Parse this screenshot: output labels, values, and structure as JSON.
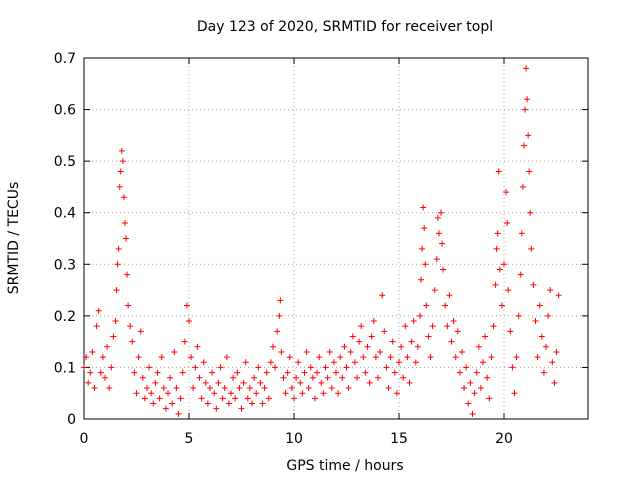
{
  "chart_data": {
    "type": "scatter",
    "title": "Day 123 of 2020, SRMTID for receiver topl",
    "xlabel": "GPS time / hours",
    "ylabel": "SRMTID / TECUs",
    "xlim": [
      0,
      24
    ],
    "ylim": [
      0,
      0.7
    ],
    "xticks": [
      0,
      5,
      10,
      15,
      20
    ],
    "xtick_labels": [
      "0",
      "5",
      "10",
      "15",
      "20"
    ],
    "yticks": [
      0,
      0.1,
      0.2,
      0.3,
      0.4,
      0.5,
      0.6,
      0.7
    ],
    "ytick_labels": [
      "0",
      "0.1",
      "0.2",
      "0.3",
      "0.4",
      "0.5",
      "0.6",
      "0.7"
    ],
    "grid": true,
    "marker": "plus",
    "color": "#ff0000",
    "series": [
      {
        "name": "SRMTID",
        "points": [
          [
            0.0,
            0.1
          ],
          [
            0.1,
            0.12
          ],
          [
            0.2,
            0.07
          ],
          [
            0.3,
            0.09
          ],
          [
            0.4,
            0.13
          ],
          [
            0.5,
            0.06
          ],
          [
            0.6,
            0.18
          ],
          [
            0.7,
            0.21
          ],
          [
            0.8,
            0.09
          ],
          [
            0.9,
            0.12
          ],
          [
            1.0,
            0.08
          ],
          [
            1.1,
            0.14
          ],
          [
            1.2,
            0.06
          ],
          [
            1.3,
            0.1
          ],
          [
            1.4,
            0.16
          ],
          [
            1.5,
            0.19
          ],
          [
            1.55,
            0.25
          ],
          [
            1.6,
            0.3
          ],
          [
            1.65,
            0.33
          ],
          [
            1.7,
            0.45
          ],
          [
            1.75,
            0.48
          ],
          [
            1.8,
            0.52
          ],
          [
            1.85,
            0.5
          ],
          [
            1.9,
            0.43
          ],
          [
            1.95,
            0.38
          ],
          [
            2.0,
            0.35
          ],
          [
            2.05,
            0.28
          ],
          [
            2.1,
            0.22
          ],
          [
            2.2,
            0.18
          ],
          [
            2.3,
            0.15
          ],
          [
            2.4,
            0.09
          ],
          [
            2.5,
            0.05
          ],
          [
            2.6,
            0.12
          ],
          [
            2.7,
            0.17
          ],
          [
            2.8,
            0.08
          ],
          [
            2.9,
            0.04
          ],
          [
            3.0,
            0.06
          ],
          [
            3.1,
            0.1
          ],
          [
            3.2,
            0.05
          ],
          [
            3.3,
            0.03
          ],
          [
            3.4,
            0.07
          ],
          [
            3.5,
            0.09
          ],
          [
            3.6,
            0.04
          ],
          [
            3.7,
            0.12
          ],
          [
            3.8,
            0.06
          ],
          [
            3.9,
            0.02
          ],
          [
            4.0,
            0.05
          ],
          [
            4.1,
            0.08
          ],
          [
            4.2,
            0.03
          ],
          [
            4.3,
            0.13
          ],
          [
            4.4,
            0.06
          ],
          [
            4.5,
            0.01
          ],
          [
            4.6,
            0.04
          ],
          [
            4.7,
            0.09
          ],
          [
            4.8,
            0.15
          ],
          [
            4.9,
            0.22
          ],
          [
            5.0,
            0.19
          ],
          [
            5.1,
            0.12
          ],
          [
            5.2,
            0.06
          ],
          [
            5.3,
            0.1
          ],
          [
            5.4,
            0.14
          ],
          [
            5.5,
            0.08
          ],
          [
            5.6,
            0.04
          ],
          [
            5.7,
            0.11
          ],
          [
            5.8,
            0.07
          ],
          [
            5.9,
            0.03
          ],
          [
            6.0,
            0.06
          ],
          [
            6.1,
            0.09
          ],
          [
            6.2,
            0.05
          ],
          [
            6.3,
            0.02
          ],
          [
            6.4,
            0.07
          ],
          [
            6.5,
            0.1
          ],
          [
            6.6,
            0.04
          ],
          [
            6.7,
            0.06
          ],
          [
            6.8,
            0.12
          ],
          [
            6.9,
            0.03
          ],
          [
            7.0,
            0.05
          ],
          [
            7.1,
            0.08
          ],
          [
            7.2,
            0.04
          ],
          [
            7.3,
            0.09
          ],
          [
            7.4,
            0.06
          ],
          [
            7.5,
            0.02
          ],
          [
            7.6,
            0.07
          ],
          [
            7.7,
            0.11
          ],
          [
            7.8,
            0.04
          ],
          [
            7.9,
            0.06
          ],
          [
            8.0,
            0.03
          ],
          [
            8.1,
            0.08
          ],
          [
            8.2,
            0.05
          ],
          [
            8.3,
            0.1
          ],
          [
            8.4,
            0.07
          ],
          [
            8.5,
            0.03
          ],
          [
            8.6,
            0.06
          ],
          [
            8.7,
            0.09
          ],
          [
            8.8,
            0.04
          ],
          [
            8.9,
            0.11
          ],
          [
            9.0,
            0.14
          ],
          [
            9.1,
            0.1
          ],
          [
            9.2,
            0.17
          ],
          [
            9.3,
            0.2
          ],
          [
            9.35,
            0.23
          ],
          [
            9.4,
            0.13
          ],
          [
            9.5,
            0.08
          ],
          [
            9.6,
            0.05
          ],
          [
            9.7,
            0.09
          ],
          [
            9.8,
            0.12
          ],
          [
            9.9,
            0.06
          ],
          [
            10.0,
            0.04
          ],
          [
            10.1,
            0.08
          ],
          [
            10.2,
            0.11
          ],
          [
            10.3,
            0.07
          ],
          [
            10.4,
            0.05
          ],
          [
            10.5,
            0.09
          ],
          [
            10.6,
            0.13
          ],
          [
            10.7,
            0.06
          ],
          [
            10.8,
            0.1
          ],
          [
            10.9,
            0.08
          ],
          [
            11.0,
            0.04
          ],
          [
            11.1,
            0.09
          ],
          [
            11.2,
            0.12
          ],
          [
            11.3,
            0.07
          ],
          [
            11.4,
            0.05
          ],
          [
            11.5,
            0.1
          ],
          [
            11.6,
            0.08
          ],
          [
            11.7,
            0.13
          ],
          [
            11.8,
            0.06
          ],
          [
            11.9,
            0.11
          ],
          [
            12.0,
            0.09
          ],
          [
            12.1,
            0.05
          ],
          [
            12.2,
            0.12
          ],
          [
            12.3,
            0.08
          ],
          [
            12.4,
            0.14
          ],
          [
            12.5,
            0.1
          ],
          [
            12.6,
            0.06
          ],
          [
            12.7,
            0.13
          ],
          [
            12.8,
            0.16
          ],
          [
            12.9,
            0.11
          ],
          [
            13.0,
            0.08
          ],
          [
            13.1,
            0.15
          ],
          [
            13.2,
            0.18
          ],
          [
            13.3,
            0.12
          ],
          [
            13.4,
            0.09
          ],
          [
            13.5,
            0.14
          ],
          [
            13.6,
            0.07
          ],
          [
            13.7,
            0.16
          ],
          [
            13.8,
            0.19
          ],
          [
            13.9,
            0.12
          ],
          [
            14.0,
            0.08
          ],
          [
            14.1,
            0.13
          ],
          [
            14.2,
            0.24
          ],
          [
            14.3,
            0.17
          ],
          [
            14.4,
            0.1
          ],
          [
            14.5,
            0.06
          ],
          [
            14.6,
            0.12
          ],
          [
            14.7,
            0.15
          ],
          [
            14.8,
            0.09
          ],
          [
            14.9,
            0.05
          ],
          [
            15.0,
            0.11
          ],
          [
            15.1,
            0.14
          ],
          [
            15.2,
            0.08
          ],
          [
            15.3,
            0.18
          ],
          [
            15.4,
            0.12
          ],
          [
            15.5,
            0.07
          ],
          [
            15.6,
            0.15
          ],
          [
            15.7,
            0.19
          ],
          [
            15.8,
            0.11
          ],
          [
            15.9,
            0.14
          ],
          [
            16.0,
            0.2
          ],
          [
            16.05,
            0.27
          ],
          [
            16.1,
            0.33
          ],
          [
            16.15,
            0.41
          ],
          [
            16.2,
            0.37
          ],
          [
            16.25,
            0.3
          ],
          [
            16.3,
            0.22
          ],
          [
            16.4,
            0.16
          ],
          [
            16.5,
            0.12
          ],
          [
            16.6,
            0.18
          ],
          [
            16.7,
            0.25
          ],
          [
            16.8,
            0.31
          ],
          [
            16.85,
            0.39
          ],
          [
            16.9,
            0.36
          ],
          [
            17.0,
            0.4
          ],
          [
            17.05,
            0.34
          ],
          [
            17.1,
            0.29
          ],
          [
            17.2,
            0.22
          ],
          [
            17.3,
            0.18
          ],
          [
            17.4,
            0.24
          ],
          [
            17.5,
            0.15
          ],
          [
            17.6,
            0.19
          ],
          [
            17.7,
            0.12
          ],
          [
            17.8,
            0.17
          ],
          [
            17.9,
            0.09
          ],
          [
            18.0,
            0.13
          ],
          [
            18.1,
            0.06
          ],
          [
            18.2,
            0.1
          ],
          [
            18.3,
            0.03
          ],
          [
            18.4,
            0.07
          ],
          [
            18.5,
            0.01
          ],
          [
            18.6,
            0.05
          ],
          [
            18.7,
            0.09
          ],
          [
            18.8,
            0.14
          ],
          [
            18.9,
            0.06
          ],
          [
            19.0,
            0.11
          ],
          [
            19.1,
            0.16
          ],
          [
            19.2,
            0.08
          ],
          [
            19.3,
            0.04
          ],
          [
            19.4,
            0.12
          ],
          [
            19.5,
            0.18
          ],
          [
            19.6,
            0.26
          ],
          [
            19.65,
            0.33
          ],
          [
            19.7,
            0.36
          ],
          [
            19.75,
            0.48
          ],
          [
            19.8,
            0.29
          ],
          [
            19.9,
            0.22
          ],
          [
            20.0,
            0.3
          ],
          [
            20.1,
            0.44
          ],
          [
            20.15,
            0.38
          ],
          [
            20.2,
            0.25
          ],
          [
            20.3,
            0.17
          ],
          [
            20.4,
            0.1
          ],
          [
            20.5,
            0.05
          ],
          [
            20.6,
            0.12
          ],
          [
            20.7,
            0.2
          ],
          [
            20.8,
            0.28
          ],
          [
            20.85,
            0.36
          ],
          [
            20.9,
            0.45
          ],
          [
            20.95,
            0.53
          ],
          [
            21.0,
            0.6
          ],
          [
            21.05,
            0.68
          ],
          [
            21.1,
            0.62
          ],
          [
            21.15,
            0.55
          ],
          [
            21.2,
            0.48
          ],
          [
            21.25,
            0.4
          ],
          [
            21.3,
            0.33
          ],
          [
            21.4,
            0.26
          ],
          [
            21.5,
            0.19
          ],
          [
            21.6,
            0.12
          ],
          [
            21.7,
            0.22
          ],
          [
            21.8,
            0.16
          ],
          [
            21.9,
            0.09
          ],
          [
            22.0,
            0.14
          ],
          [
            22.1,
            0.2
          ],
          [
            22.2,
            0.25
          ],
          [
            22.3,
            0.11
          ],
          [
            22.4,
            0.07
          ],
          [
            22.5,
            0.13
          ],
          [
            22.6,
            0.24
          ]
        ]
      }
    ]
  }
}
